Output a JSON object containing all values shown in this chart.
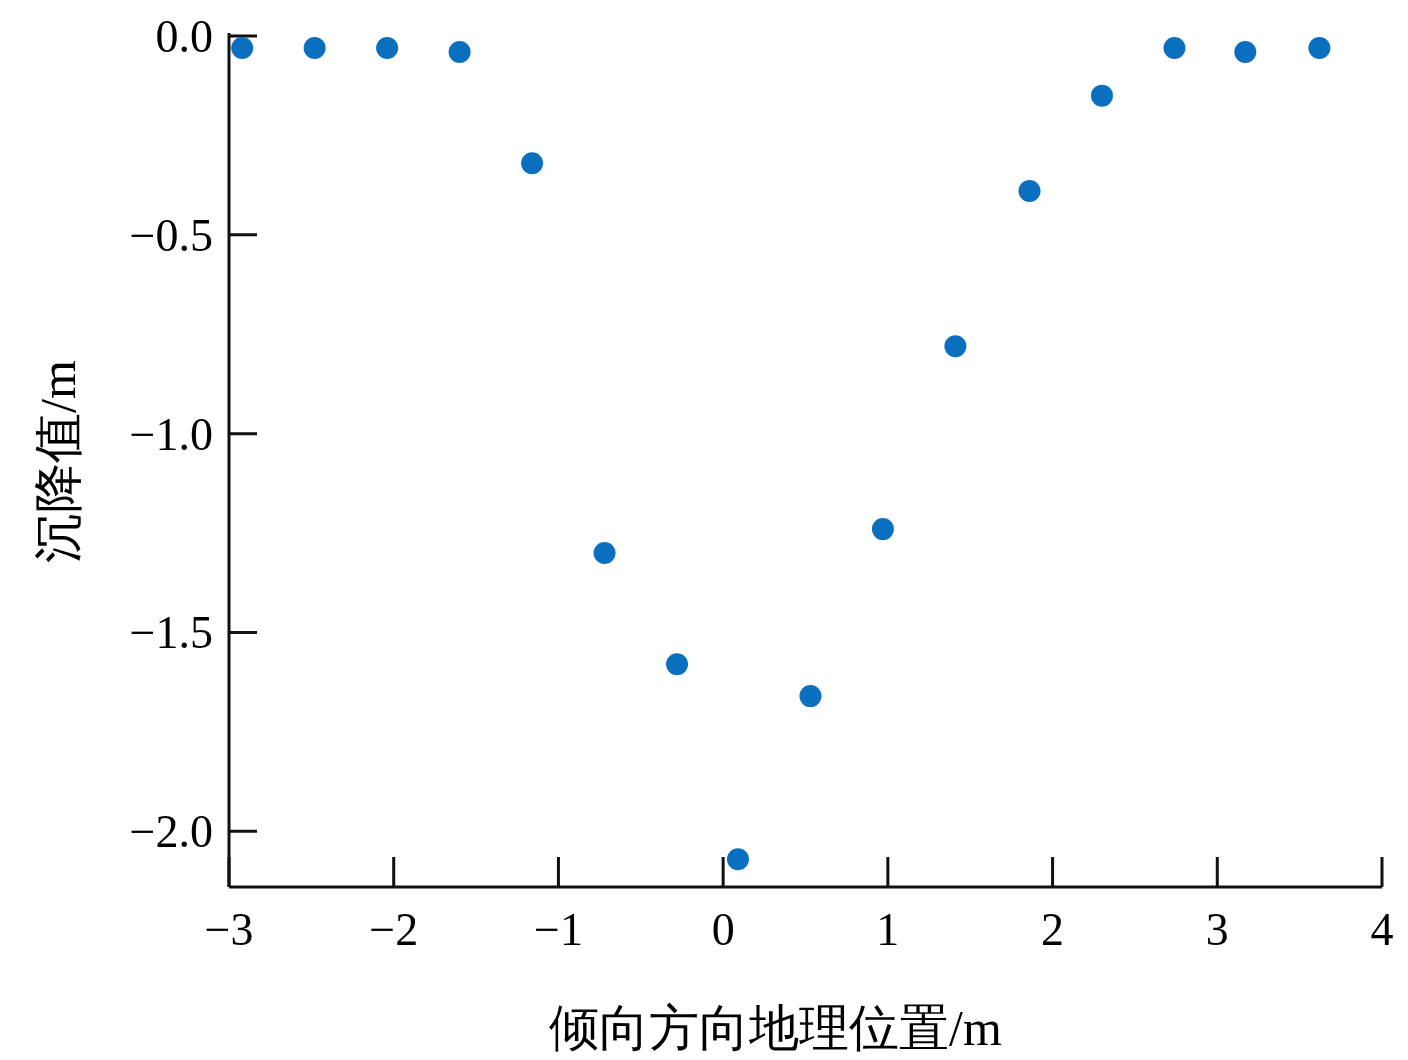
{
  "chart_data": {
    "type": "scatter",
    "xlabel": "倾向方向地理位置/m",
    "ylabel": "沉降值/m",
    "x": [
      -2.92,
      -2.48,
      -2.04,
      -1.6,
      -1.16,
      -0.72,
      -0.28,
      0.09,
      0.53,
      0.97,
      1.41,
      1.86,
      2.3,
      2.74,
      3.17,
      3.62
    ],
    "series": [
      {
        "color": "#0b6fc0",
        "values": [
          -0.03,
          -0.03,
          -0.03,
          -0.04,
          -0.32,
          -1.3,
          -1.58,
          -2.07,
          -1.66,
          -1.24,
          -0.78,
          -0.39,
          -0.15,
          -0.03,
          -0.04,
          -0.03
        ]
      }
    ],
    "xlim": [
      -3,
      4
    ],
    "xticks": [
      {
        "value": -3,
        "label": "−3"
      },
      {
        "value": -2,
        "label": "−2"
      },
      {
        "value": -1,
        "label": "−1"
      },
      0,
      1,
      2,
      3,
      4
    ],
    "ylim": [
      -2.14,
      0
    ],
    "yticks": [
      {
        "value": 0,
        "label": "0.0"
      },
      {
        "value": -0.5,
        "label": "−0.5"
      },
      {
        "value": -1,
        "label": "−1.0"
      },
      {
        "value": -1.5,
        "label": "−1.5"
      },
      {
        "value": -2,
        "label": "−2.0"
      }
    ],
    "marker": "circle",
    "grid": false
  }
}
